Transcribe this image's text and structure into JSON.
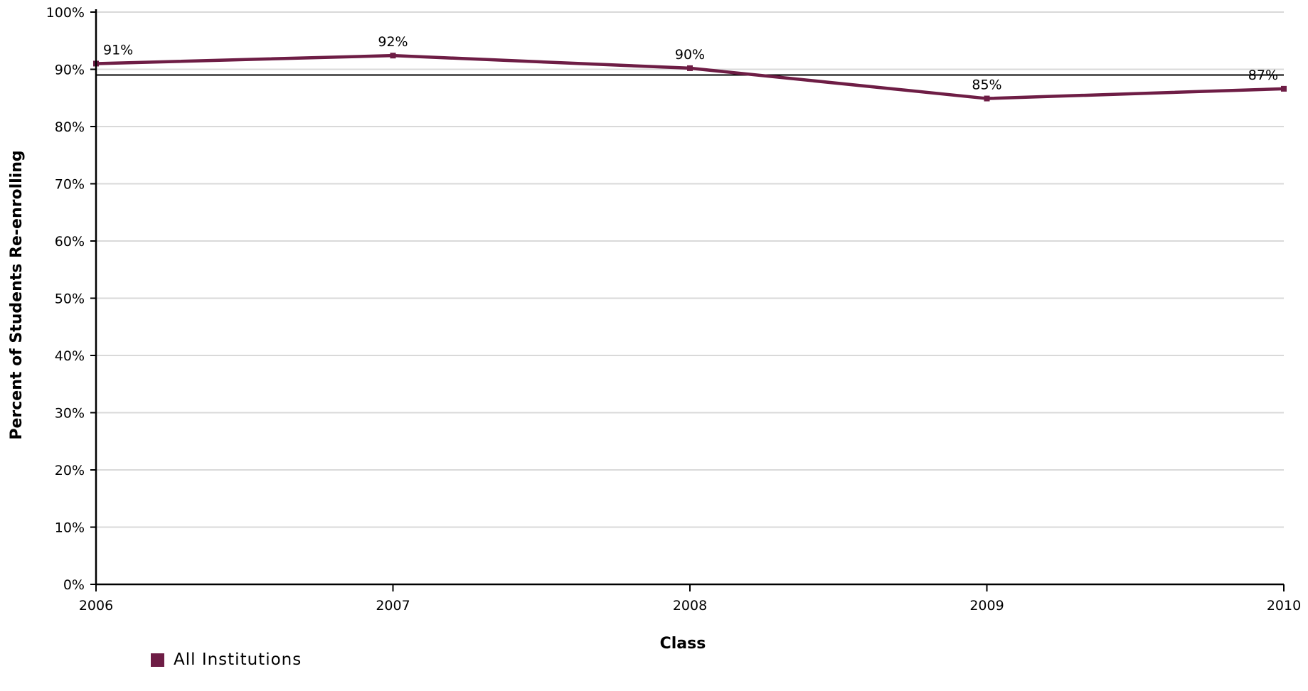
{
  "chart_data": {
    "type": "line",
    "title": "",
    "xlabel": "Class",
    "ylabel": "Percent of Students Re-enrolling",
    "categories": [
      "2006",
      "2007",
      "2008",
      "2009",
      "2010"
    ],
    "ylim": [
      0,
      100
    ],
    "yticks": [
      "0%",
      "10%",
      "20%",
      "30%",
      "40%",
      "50%",
      "60%",
      "70%",
      "80%",
      "90%",
      "100%"
    ],
    "series": [
      {
        "name": "All Institutions",
        "color": "#6e1d45",
        "values": [
          91,
          92.4,
          90.2,
          84.9,
          86.6
        ],
        "labels": [
          "91%",
          "92%",
          "90%",
          "85%",
          "87%"
        ]
      }
    ],
    "reference_line": {
      "value": 89
    },
    "grid": true,
    "legend": "bottom-left"
  }
}
